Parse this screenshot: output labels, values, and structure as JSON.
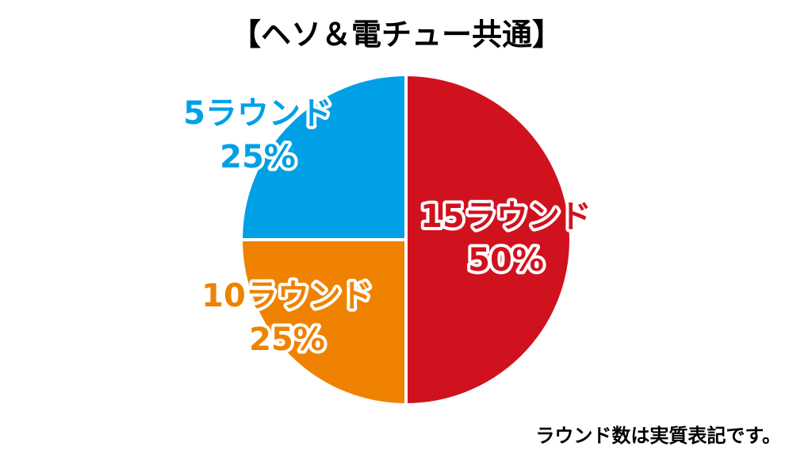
{
  "chart_data": {
    "type": "pie",
    "title": "【ヘソ＆電チュー共通】",
    "categories": [
      "15ラウンド",
      "10ラウンド",
      "5ラウンド"
    ],
    "values": [
      50,
      25,
      25
    ],
    "value_labels": [
      "50%",
      "25%",
      "25%"
    ],
    "colors": [
      "#d0121e",
      "#ef8200",
      "#00a0e6"
    ],
    "note": "ラウンド数は実質表記です。"
  }
}
